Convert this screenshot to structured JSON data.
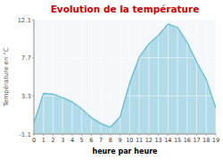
{
  "chart_data": {
    "type": "area",
    "title": "Evolution de la température",
    "xlabel": "heure par heure",
    "ylabel": "Température en °C",
    "x": [
      0,
      1,
      2,
      3,
      4,
      5,
      6,
      7,
      8,
      9,
      10,
      11,
      12,
      13,
      14,
      15,
      16,
      17,
      18,
      19
    ],
    "values": [
      0.2,
      3.6,
      3.5,
      3.1,
      2.6,
      1.8,
      0.8,
      0.1,
      -0.3,
      0.9,
      4.8,
      7.8,
      9.3,
      10.3,
      11.6,
      11.2,
      9.5,
      7.2,
      5.2,
      1.9
    ],
    "color": "#60b8d0",
    "xlim": [
      0,
      19
    ],
    "xticks": [
      0,
      1,
      2,
      3,
      4,
      5,
      6,
      7,
      8,
      9,
      10,
      11,
      12,
      13,
      14,
      15,
      16,
      17,
      18,
      19
    ],
    "ylim": [
      -1.1,
      12.1
    ],
    "yticks": [
      -1.1,
      3.3,
      7.7,
      12.1
    ],
    "grid": true
  }
}
